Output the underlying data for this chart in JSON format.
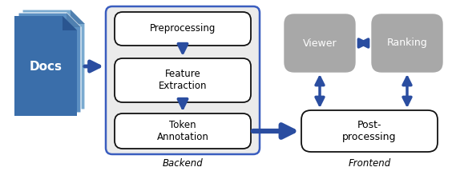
{
  "fig_width": 5.64,
  "fig_height": 2.44,
  "dpi": 100,
  "arrow_color": "#2A4DA0",
  "box_edge_color": "#111111",
  "backend_bg": "#EBEBEB",
  "backend_border": "#3A5DBF",
  "docs_blue_light": "#7AAAD0",
  "docs_blue_mid": "#5B8FC2",
  "docs_blue_dark": "#3A6EAA",
  "gray_box": "#A8A8A8",
  "white_box_bg": "#FFFFFF",
  "backend_label": "Backend",
  "frontend_label": "Frontend",
  "preprocessing_label": "Preprocessing",
  "feature_label": "Feature\nExtraction",
  "token_label": "Token\nAnnotation",
  "postprocessing_label": "Post-\nprocessing",
  "viewer_label": "Viewer",
  "ranking_label": "Ranking",
  "docs_label": "Docs"
}
